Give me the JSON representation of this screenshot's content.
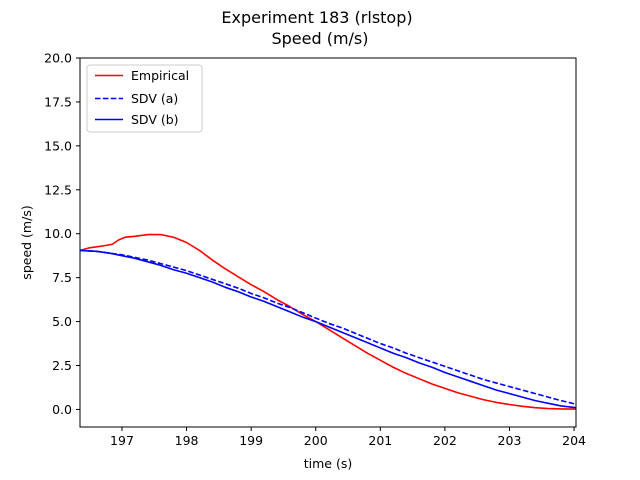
{
  "chart_data": {
    "type": "line",
    "title": "Experiment 183 (rlstop)",
    "subtitle": "Speed (m/s)",
    "xlabel": "time (s)",
    "ylabel": "speed (m/s)",
    "xlim": [
      196.35,
      204.03
    ],
    "ylim": [
      -1.0,
      20.0
    ],
    "xticks": [
      197,
      198,
      199,
      200,
      201,
      202,
      203,
      204
    ],
    "xtick_labels": [
      "197",
      "198",
      "199",
      "200",
      "201",
      "202",
      "203",
      "204"
    ],
    "yticks": [
      0.0,
      2.5,
      5.0,
      7.5,
      10.0,
      12.5,
      15.0,
      17.5,
      20.0
    ],
    "ytick_labels": [
      "0.0",
      "2.5",
      "5.0",
      "7.5",
      "10.0",
      "12.5",
      "15.0",
      "17.5",
      "20.0"
    ],
    "grid": false,
    "legend_position": "top-left",
    "series": [
      {
        "name": "Empirical",
        "color": "#ff0000",
        "dash": "solid",
        "points": [
          [
            196.35,
            9.05
          ],
          [
            196.5,
            9.2
          ],
          [
            196.7,
            9.3
          ],
          [
            196.85,
            9.4
          ],
          [
            196.95,
            9.65
          ],
          [
            197.05,
            9.8
          ],
          [
            197.2,
            9.85
          ],
          [
            197.4,
            9.95
          ],
          [
            197.6,
            9.95
          ],
          [
            197.8,
            9.8
          ],
          [
            198.0,
            9.5
          ],
          [
            198.2,
            9.05
          ],
          [
            198.4,
            8.5
          ],
          [
            198.6,
            8.0
          ],
          [
            198.8,
            7.55
          ],
          [
            199.0,
            7.1
          ],
          [
            199.2,
            6.7
          ],
          [
            199.4,
            6.25
          ],
          [
            199.6,
            5.85
          ],
          [
            199.8,
            5.4
          ],
          [
            200.0,
            5.0
          ],
          [
            200.2,
            4.55
          ],
          [
            200.4,
            4.1
          ],
          [
            200.6,
            3.65
          ],
          [
            200.8,
            3.2
          ],
          [
            201.0,
            2.8
          ],
          [
            201.2,
            2.4
          ],
          [
            201.4,
            2.05
          ],
          [
            201.6,
            1.75
          ],
          [
            201.8,
            1.45
          ],
          [
            202.0,
            1.2
          ],
          [
            202.2,
            0.95
          ],
          [
            202.4,
            0.75
          ],
          [
            202.6,
            0.55
          ],
          [
            202.8,
            0.4
          ],
          [
            203.0,
            0.28
          ],
          [
            203.2,
            0.18
          ],
          [
            203.4,
            0.1
          ],
          [
            203.6,
            0.05
          ],
          [
            203.8,
            0.03
          ],
          [
            204.03,
            0.02
          ]
        ]
      },
      {
        "name": "SDV (a)",
        "color": "#0000ff",
        "dash": "dashed",
        "points": [
          [
            196.35,
            9.05
          ],
          [
            196.6,
            9.0
          ],
          [
            196.8,
            8.9
          ],
          [
            197.0,
            8.8
          ],
          [
            197.2,
            8.65
          ],
          [
            197.4,
            8.5
          ],
          [
            197.6,
            8.3
          ],
          [
            197.8,
            8.1
          ],
          [
            198.0,
            7.9
          ],
          [
            198.2,
            7.65
          ],
          [
            198.4,
            7.4
          ],
          [
            198.6,
            7.15
          ],
          [
            198.8,
            6.9
          ],
          [
            199.0,
            6.6
          ],
          [
            199.2,
            6.35
          ],
          [
            199.4,
            6.05
          ],
          [
            199.6,
            5.8
          ],
          [
            199.8,
            5.5
          ],
          [
            200.0,
            5.2
          ],
          [
            200.2,
            4.9
          ],
          [
            200.4,
            4.65
          ],
          [
            200.6,
            4.35
          ],
          [
            200.8,
            4.05
          ],
          [
            201.0,
            3.75
          ],
          [
            201.2,
            3.5
          ],
          [
            201.4,
            3.2
          ],
          [
            201.6,
            2.95
          ],
          [
            201.8,
            2.7
          ],
          [
            202.0,
            2.45
          ],
          [
            202.2,
            2.2
          ],
          [
            202.4,
            1.95
          ],
          [
            202.6,
            1.7
          ],
          [
            202.8,
            1.5
          ],
          [
            203.0,
            1.3
          ],
          [
            203.2,
            1.1
          ],
          [
            203.4,
            0.9
          ],
          [
            203.6,
            0.7
          ],
          [
            203.8,
            0.5
          ],
          [
            204.03,
            0.3
          ]
        ]
      },
      {
        "name": "SDV (b)",
        "color": "#0000ff",
        "dash": "solid",
        "points": [
          [
            196.35,
            9.05
          ],
          [
            196.6,
            9.0
          ],
          [
            196.8,
            8.9
          ],
          [
            197.0,
            8.75
          ],
          [
            197.2,
            8.6
          ],
          [
            197.4,
            8.4
          ],
          [
            197.6,
            8.2
          ],
          [
            197.8,
            7.95
          ],
          [
            198.0,
            7.75
          ],
          [
            198.2,
            7.5
          ],
          [
            198.4,
            7.25
          ],
          [
            198.6,
            6.95
          ],
          [
            198.8,
            6.7
          ],
          [
            199.0,
            6.4
          ],
          [
            199.2,
            6.15
          ],
          [
            199.4,
            5.85
          ],
          [
            199.6,
            5.55
          ],
          [
            199.8,
            5.25
          ],
          [
            200.0,
            5.0
          ],
          [
            200.2,
            4.7
          ],
          [
            200.4,
            4.4
          ],
          [
            200.6,
            4.1
          ],
          [
            200.8,
            3.8
          ],
          [
            201.0,
            3.5
          ],
          [
            201.2,
            3.2
          ],
          [
            201.4,
            2.95
          ],
          [
            201.6,
            2.65
          ],
          [
            201.8,
            2.4
          ],
          [
            202.0,
            2.1
          ],
          [
            202.2,
            1.85
          ],
          [
            202.4,
            1.6
          ],
          [
            202.6,
            1.35
          ],
          [
            202.8,
            1.1
          ],
          [
            203.0,
            0.9
          ],
          [
            203.2,
            0.7
          ],
          [
            203.4,
            0.5
          ],
          [
            203.6,
            0.35
          ],
          [
            203.8,
            0.2
          ],
          [
            204.03,
            0.1
          ]
        ]
      }
    ]
  }
}
